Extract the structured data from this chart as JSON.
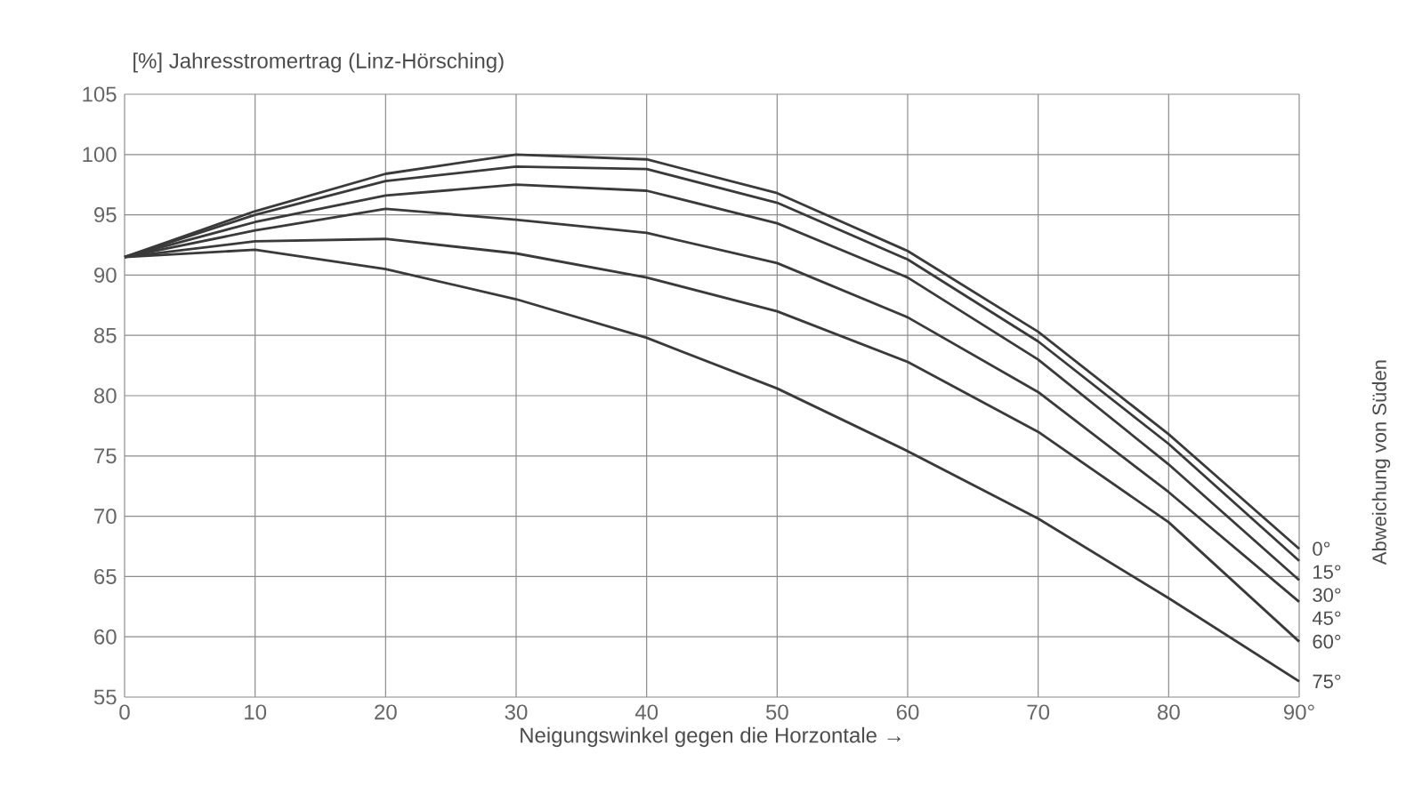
{
  "chart_data": {
    "type": "line",
    "title": "[%] Jahresstromertrag (Linz-Hörsching)",
    "xlabel": "Neigungswinkel gegen die Horzontale →",
    "legend_title": "Abweichung von Süden",
    "x": [
      0,
      10,
      20,
      30,
      40,
      50,
      60,
      70,
      80,
      90
    ],
    "series": [
      {
        "name": "0°",
        "color": "#3a3a3a",
        "values": [
          91.5,
          95.3,
          98.4,
          100.0,
          99.6,
          96.8,
          92.0,
          85.3,
          76.8,
          67.3
        ]
      },
      {
        "name": "15°",
        "color": "#3a3a3a",
        "values": [
          91.5,
          95.0,
          97.8,
          99.0,
          98.8,
          96.0,
          91.3,
          84.5,
          76.0,
          66.3
        ]
      },
      {
        "name": "30°",
        "color": "#3a3a3a",
        "values": [
          91.5,
          94.4,
          96.6,
          97.5,
          97.0,
          94.3,
          89.8,
          83.0,
          74.3,
          64.7
        ]
      },
      {
        "name": "45°",
        "color": "#3a3a3a",
        "values": [
          91.5,
          93.7,
          95.5,
          94.6,
          93.5,
          91.0,
          86.5,
          80.3,
          72.0,
          62.9
        ]
      },
      {
        "name": "60°",
        "color": "#3a3a3a",
        "values": [
          91.5,
          92.8,
          93.0,
          91.8,
          89.8,
          87.0,
          82.8,
          77.0,
          69.5,
          59.6
        ]
      },
      {
        "name": "75°",
        "color": "#3a3a3a",
        "values": [
          91.5,
          92.1,
          90.5,
          88.0,
          84.8,
          80.6,
          75.4,
          69.8,
          63.2,
          56.3
        ]
      }
    ],
    "xlim": [
      0,
      90
    ],
    "ylim": [
      55,
      105
    ],
    "xticks": [
      0,
      10,
      20,
      30,
      40,
      50,
      60,
      70,
      80,
      {
        "value": 90,
        "label": "90°"
      }
    ],
    "yticks": [
      55,
      60,
      65,
      70,
      75,
      80,
      85,
      90,
      95,
      100,
      105
    ],
    "grid": true,
    "legend": "right",
    "marker": "none",
    "line_style": "solid"
  }
}
